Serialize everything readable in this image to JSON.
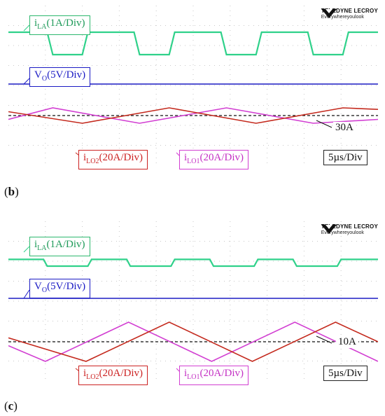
{
  "brand": {
    "name": "TELEDYNE LECROY",
    "tagline": "Everywhereyoulook"
  },
  "colors": {
    "i_LA": "#2fd18a",
    "V_O": "#1b1bc4",
    "i_LO1": "#d23fd2",
    "i_LO2": "#c42a1e",
    "reference": "#111111",
    "grid": "#c8c8c8"
  },
  "panels": [
    {
      "caption_letter": "b",
      "labels": {
        "i_LA": {
          "prefix": "i",
          "sub": "LA",
          "suffix": "(1A/Div)"
        },
        "V_O": {
          "prefix": "V",
          "sub": "O",
          "suffix": "(5V/Div)"
        },
        "i_LO2": {
          "prefix": "i",
          "sub": "LO2",
          "suffix": "(20A/Div)"
        },
        "i_LO1": {
          "prefix": "i",
          "sub": "LO1",
          "suffix": "(20A/Div)"
        },
        "ref_level": "30A",
        "timebase": "5µs/Div"
      }
    },
    {
      "caption_letter": "c",
      "labels": {
        "i_LA": {
          "prefix": "i",
          "sub": "LA",
          "suffix": "(1A/Div)"
        },
        "V_O": {
          "prefix": "V",
          "sub": "O",
          "suffix": "(5V/Div)"
        },
        "i_LO2": {
          "prefix": "i",
          "sub": "LO2",
          "suffix": "(20A/Div)"
        },
        "i_LO1": {
          "prefix": "i",
          "sub": "LO1",
          "suffix": "(20A/Div)"
        },
        "ref_level": "10A",
        "timebase": "5µs/Div"
      }
    }
  ],
  "chart_data": [
    {
      "type": "line",
      "x_unit": "div",
      "xlim": [
        0,
        10
      ],
      "series": [
        {
          "name": "i_LA",
          "scale": "1A/Div",
          "x": [
            0,
            1.05,
            1.2,
            2.0,
            2.15,
            3.4,
            3.55,
            4.35,
            4.5,
            5.75,
            5.9,
            6.7,
            6.85,
            8.1,
            8.25,
            9.05,
            9.2,
            10
          ],
          "y": [
            1,
            1,
            0,
            0,
            1,
            1,
            0,
            0,
            1,
            1,
            0,
            0,
            1,
            1,
            0,
            0,
            1,
            1
          ]
        },
        {
          "name": "V_O",
          "scale": "5V/Div",
          "x": [
            0,
            10
          ],
          "y": [
            0,
            0
          ]
        },
        {
          "name": "i_LO1",
          "scale": "20A/Div",
          "x": [
            0,
            1.2,
            3.55,
            5.9,
            8.25,
            10
          ],
          "y": [
            25,
            40,
            20,
            40,
            20,
            25
          ]
        },
        {
          "name": "i_LO2",
          "scale": "20A/Div",
          "x": [
            0,
            2.0,
            4.35,
            6.7,
            9.05,
            10
          ],
          "y": [
            35,
            20,
            40,
            20,
            40,
            38
          ]
        }
      ],
      "reference_level": 30
    },
    {
      "type": "line",
      "x_unit": "div",
      "xlim": [
        0,
        10
      ],
      "series": [
        {
          "name": "i_LA",
          "scale": "1A/Div",
          "x": [
            0,
            0.95,
            1.05,
            2.15,
            2.25,
            3.2,
            3.3,
            4.4,
            4.5,
            5.45,
            5.55,
            6.65,
            6.75,
            7.7,
            7.8,
            8.9,
            9.0,
            10
          ],
          "y": [
            0.3,
            0.3,
            0,
            0,
            0.3,
            0.3,
            0,
            0,
            0.3,
            0.3,
            0,
            0,
            0.3,
            0.3,
            0,
            0,
            0.3,
            0.3
          ]
        },
        {
          "name": "V_O",
          "scale": "5V/Div",
          "x": [
            0,
            10
          ],
          "y": [
            0,
            0
          ]
        },
        {
          "name": "i_LO1",
          "scale": "20A/Div",
          "x": [
            0,
            1.0,
            3.25,
            5.5,
            7.75,
            10
          ],
          "y": [
            8,
            0,
            20,
            0,
            20,
            0
          ]
        },
        {
          "name": "i_LO2",
          "scale": "20A/Div",
          "x": [
            0,
            2.1,
            4.35,
            6.6,
            8.85,
            10
          ],
          "y": [
            12,
            0,
            20,
            0,
            20,
            10
          ]
        }
      ],
      "reference_level": 10
    }
  ]
}
